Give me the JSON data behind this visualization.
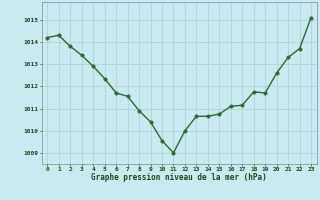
{
  "x": [
    0,
    1,
    2,
    3,
    4,
    5,
    6,
    7,
    8,
    9,
    10,
    11,
    12,
    13,
    14,
    15,
    16,
    17,
    18,
    19,
    20,
    21,
    22,
    23
  ],
  "y": [
    1014.2,
    1014.3,
    1013.8,
    1013.4,
    1012.9,
    1012.35,
    1011.7,
    1011.55,
    1010.9,
    1010.4,
    1009.55,
    1009.0,
    1010.0,
    1010.65,
    1010.65,
    1010.75,
    1011.1,
    1011.15,
    1011.75,
    1011.7,
    1012.6,
    1013.3,
    1013.7,
    1015.1
  ],
  "line_color": "#2d6a2d",
  "marker_color": "#2d6a2d",
  "bg_color": "#c8eaf0",
  "grid_color": "#b0ccd4",
  "xlabel": "Graphe pression niveau de la mer (hPa)",
  "xlabel_color": "#1a4a1a",
  "tick_color": "#1a4a1a",
  "ylim": [
    1008.5,
    1015.8
  ],
  "yticks": [
    1009,
    1010,
    1011,
    1012,
    1013,
    1014,
    1015
  ],
  "xticks": [
    0,
    1,
    2,
    3,
    4,
    5,
    6,
    7,
    8,
    9,
    10,
    11,
    12,
    13,
    14,
    15,
    16,
    17,
    18,
    19,
    20,
    21,
    22,
    23
  ],
  "marker_size": 2.5,
  "line_width": 1.0
}
